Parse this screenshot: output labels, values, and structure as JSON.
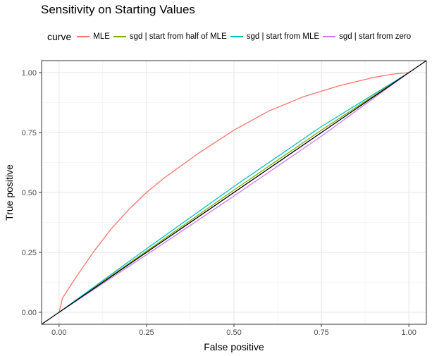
{
  "chart_data": {
    "type": "line",
    "title": "Sensitivity on Starting Values",
    "xlabel": "False positive",
    "ylabel": "True positive",
    "xlim": [
      -0.05,
      1.05
    ],
    "ylim": [
      -0.05,
      1.05
    ],
    "xticks": [
      0.0,
      0.25,
      0.5,
      0.75,
      1.0
    ],
    "xtick_labels": [
      "0.00",
      "0.25",
      "0.50",
      "0.75",
      "1.00"
    ],
    "yticks": [
      0.0,
      0.25,
      0.5,
      0.75,
      1.0
    ],
    "ytick_labels": [
      "0.00",
      "0.25",
      "0.50",
      "0.75",
      "1.00"
    ],
    "grid": true,
    "legend": {
      "title": "curve",
      "position": "top"
    },
    "series": [
      {
        "name": "MLE",
        "color": "#F8766D",
        "x": [
          0,
          0.01,
          0.05,
          0.1,
          0.15,
          0.2,
          0.25,
          0.3,
          0.4,
          0.5,
          0.6,
          0.7,
          0.8,
          0.9,
          0.95,
          1.0
        ],
        "y": [
          0,
          0.06,
          0.15,
          0.255,
          0.35,
          0.43,
          0.5,
          0.56,
          0.665,
          0.76,
          0.84,
          0.9,
          0.945,
          0.98,
          0.993,
          1.0
        ]
      },
      {
        "name": "sgd | start from half of MLE",
        "color": "#7CAE00",
        "x": [
          0,
          0.25,
          0.5,
          0.75,
          1.0
        ],
        "y": [
          0,
          0.255,
          0.51,
          0.76,
          1.0
        ]
      },
      {
        "name": "sgd | start from MLE",
        "color": "#00BFC4",
        "x": [
          0,
          0.25,
          0.5,
          0.75,
          1.0
        ],
        "y": [
          0,
          0.265,
          0.525,
          0.775,
          1.0
        ]
      },
      {
        "name": "sgd | start from zero",
        "color": "#C77CFF",
        "x": [
          0,
          0.25,
          0.5,
          0.75,
          1.0
        ],
        "y": [
          0,
          0.24,
          0.485,
          0.735,
          1.0
        ]
      }
    ],
    "reference_line": {
      "x": [
        -0.05,
        1.05
      ],
      "y": [
        -0.05,
        1.05
      ],
      "color": "#000000"
    }
  }
}
